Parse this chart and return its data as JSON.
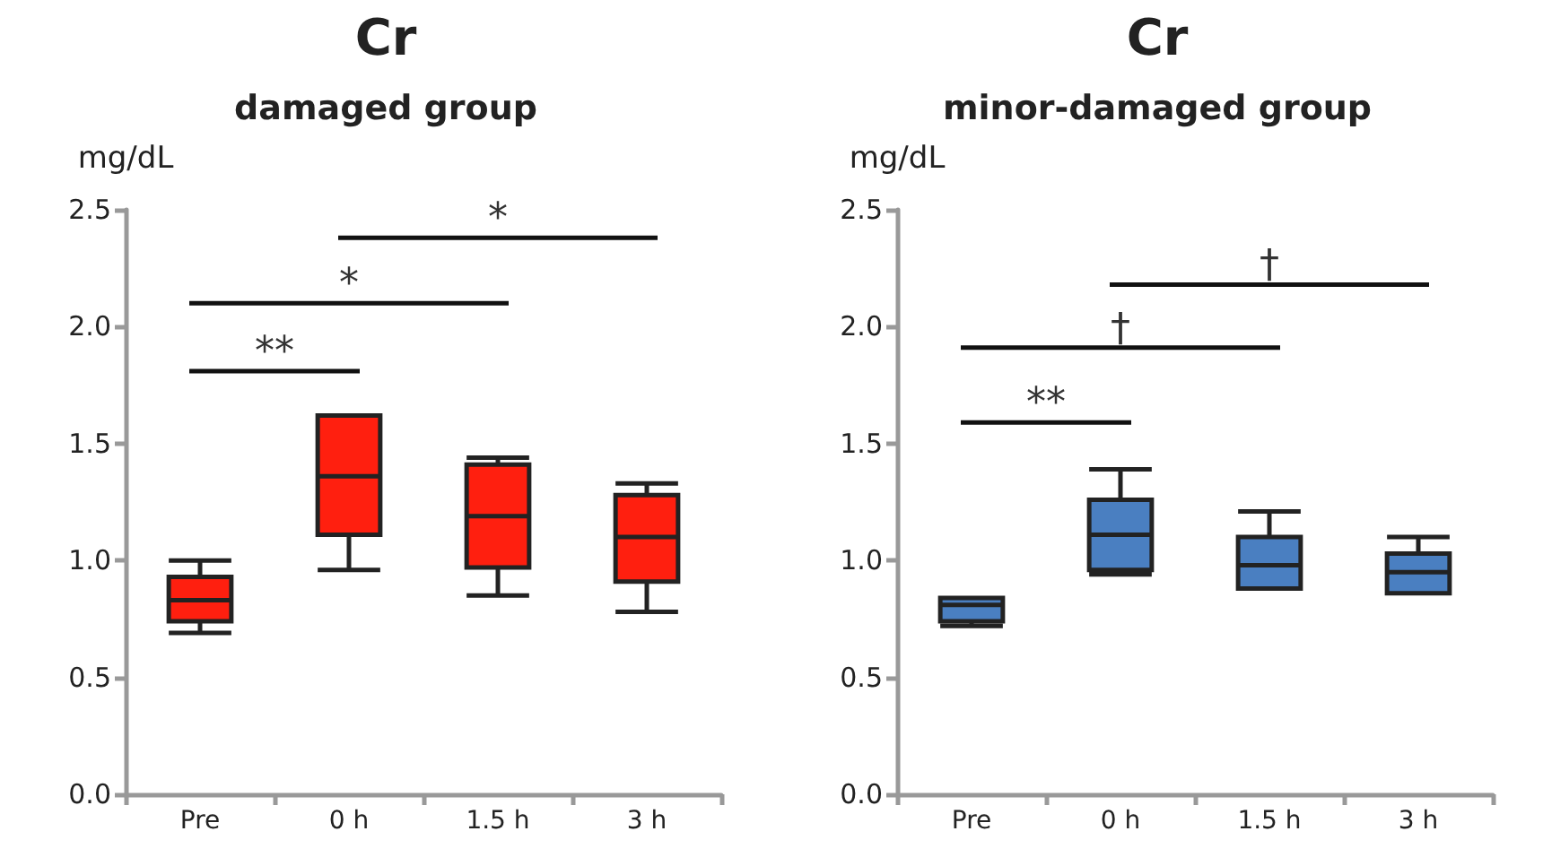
{
  "chart_data": [
    {
      "type": "box",
      "title": "Cr",
      "subtitle": "damaged group",
      "ylabel": "mg/dL",
      "categories": [
        "Pre",
        "0 h",
        "1.5 h",
        "3 h"
      ],
      "series": [
        {
          "color": "#ff1f0f",
          "boxes": [
            {
              "low": 0.69,
              "q1": 0.74,
              "median": 0.83,
              "q3": 0.93,
              "high": 1.0
            },
            {
              "low": 0.96,
              "q1": 1.11,
              "median": 1.36,
              "q3": 1.62,
              "high": 1.62
            },
            {
              "low": 0.85,
              "q1": 0.97,
              "median": 1.19,
              "q3": 1.41,
              "high": 1.44
            },
            {
              "low": 0.78,
              "q1": 0.91,
              "median": 1.1,
              "q3": 1.28,
              "high": 1.33
            }
          ]
        }
      ],
      "ylim": [
        0,
        2.5
      ],
      "yticks": [
        {
          "value": 0,
          "label": "0.0"
        },
        {
          "value": 0.5,
          "label": "0.5"
        },
        {
          "value": 1,
          "label": "1.0"
        },
        {
          "value": 1.5,
          "label": "1.5"
        },
        {
          "value": 2,
          "label": "2.0"
        },
        {
          "value": 2.5,
          "label": "2.5"
        }
      ],
      "grid": false,
      "annotations": [
        "**",
        "*",
        "*"
      ]
    },
    {
      "type": "box",
      "title": "Cr",
      "subtitle": "minor-damaged group",
      "ylabel": "mg/dL",
      "categories": [
        "Pre",
        "0 h",
        "1.5 h",
        "3 h"
      ],
      "series": [
        {
          "color": "#4a7fc1",
          "boxes": [
            {
              "low": 0.72,
              "q1": 0.74,
              "median": 0.81,
              "q3": 0.84,
              "high": 0.84
            },
            {
              "low": 0.94,
              "q1": 0.96,
              "median": 1.11,
              "q3": 1.26,
              "high": 1.39
            },
            {
              "low": 0.88,
              "q1": 0.88,
              "median": 0.98,
              "q3": 1.1,
              "high": 1.21
            },
            {
              "low": 0.86,
              "q1": 0.86,
              "median": 0.95,
              "q3": 1.03,
              "high": 1.1
            }
          ]
        }
      ],
      "ylim": [
        0,
        2.5
      ],
      "yticks": [
        {
          "value": 0,
          "label": "0.0"
        },
        {
          "value": 0.5,
          "label": "0.5"
        },
        {
          "value": 1,
          "label": "1.0"
        },
        {
          "value": 1.5,
          "label": "1.5"
        },
        {
          "value": 2,
          "label": "2.0"
        },
        {
          "value": 2.5,
          "label": "2.5"
        }
      ],
      "grid": false,
      "annotations": [
        "**",
        "†",
        "†"
      ]
    }
  ]
}
